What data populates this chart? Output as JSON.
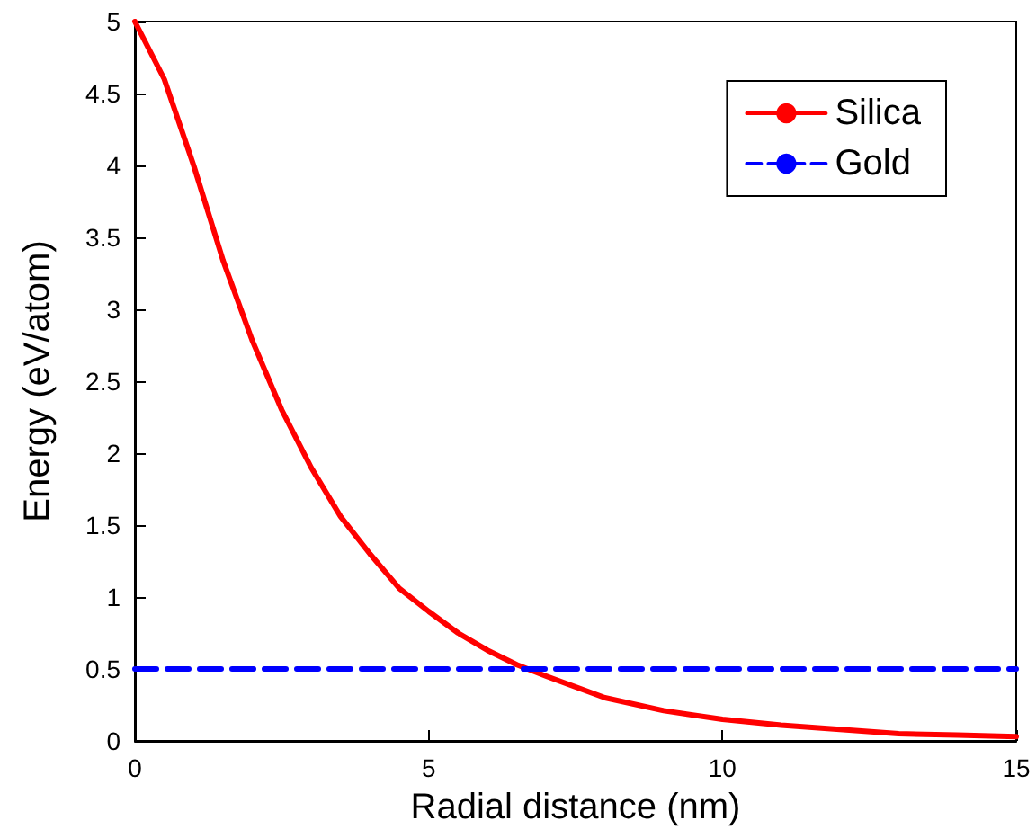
{
  "chart_data": {
    "type": "line",
    "xlabel": "Radial distance (nm)",
    "ylabel": "Energy (eV/atom)",
    "xlim": [
      0,
      15
    ],
    "xticks": [
      0,
      5,
      10,
      15
    ],
    "ylim": [
      0,
      5
    ],
    "yticks": [
      0,
      0.5,
      1,
      1.5,
      2,
      2.5,
      3,
      3.5,
      4,
      4.5,
      5
    ],
    "grid": false,
    "legend": "top right",
    "marker": "none",
    "series": [
      {
        "name": "Silica",
        "color": "#ff0000",
        "line_style": "solid",
        "x": [
          0,
          0.5,
          1,
          1.5,
          2,
          2.5,
          3,
          3.5,
          4,
          4.5,
          5,
          5.5,
          6,
          6.5,
          7,
          8,
          9,
          10,
          11,
          12,
          13,
          14,
          15
        ],
        "values": [
          5,
          4.6,
          4.0,
          3.34,
          2.78,
          2.3,
          1.9,
          1.56,
          1.3,
          1.06,
          0.9,
          0.75,
          0.63,
          0.53,
          0.45,
          0.3,
          0.21,
          0.15,
          0.11,
          0.08,
          0.05,
          0.04,
          0.03
        ]
      },
      {
        "name": "Gold",
        "color": "#0000ff",
        "line_style": "dashed",
        "x": [
          0,
          15
        ],
        "values": [
          0.5,
          0.5
        ]
      }
    ]
  }
}
